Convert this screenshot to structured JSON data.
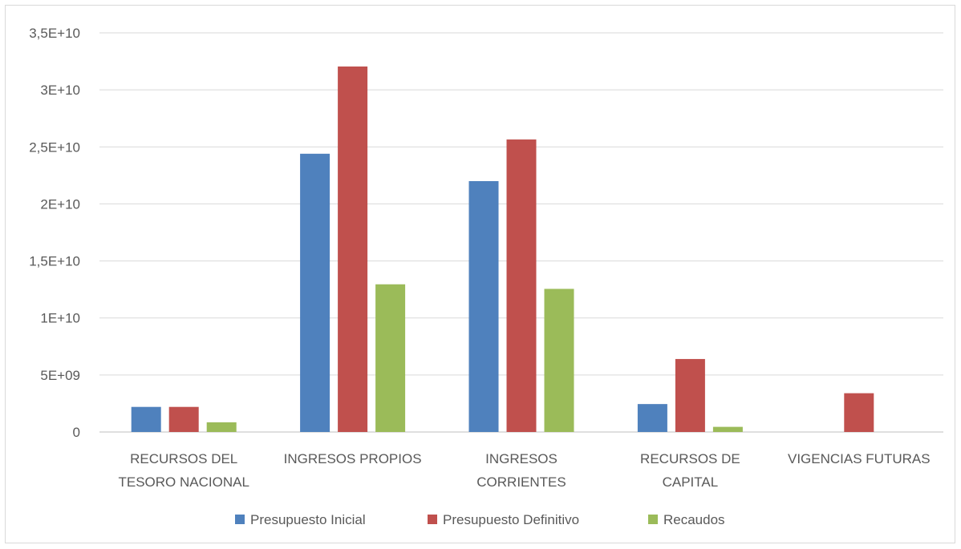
{
  "chart_data": {
    "type": "bar",
    "categories": [
      [
        "RECURSOS DEL",
        "TESORO NACIONAL"
      ],
      [
        "INGRESOS PROPIOS"
      ],
      [
        "INGRESOS",
        "CORRIENTES"
      ],
      [
        "RECURSOS DE",
        "CAPITAL"
      ],
      [
        "VIGENCIAS FUTURAS"
      ]
    ],
    "series": [
      {
        "name": "Presupuesto Inicial",
        "color": "#4f81bd",
        "values": [
          2200000000,
          24400000000,
          22000000000,
          2450000000,
          0
        ]
      },
      {
        "name": "Presupuesto Definitivo",
        "color": "#c0504d",
        "values": [
          2200000000,
          32050000000,
          25650000000,
          6400000000,
          3400000000
        ]
      },
      {
        "name": "Recaudos",
        "color": "#9bbb59",
        "values": [
          850000000,
          12950000000,
          12550000000,
          450000000,
          0
        ]
      }
    ],
    "ylim": [
      0,
      35000000000
    ],
    "yticks": [
      {
        "value": 0,
        "label": "0"
      },
      {
        "value": 5000000000,
        "label": "5E+09"
      },
      {
        "value": 10000000000,
        "label": "1E+10"
      },
      {
        "value": 15000000000,
        "label": "1,5E+10"
      },
      {
        "value": 20000000000,
        "label": "2E+10"
      },
      {
        "value": 25000000000,
        "label": "2,5E+10"
      },
      {
        "value": 30000000000,
        "label": "3E+10"
      },
      {
        "value": 35000000000,
        "label": "3,5E+10"
      }
    ],
    "grid": true,
    "legend_position": "bottom"
  }
}
